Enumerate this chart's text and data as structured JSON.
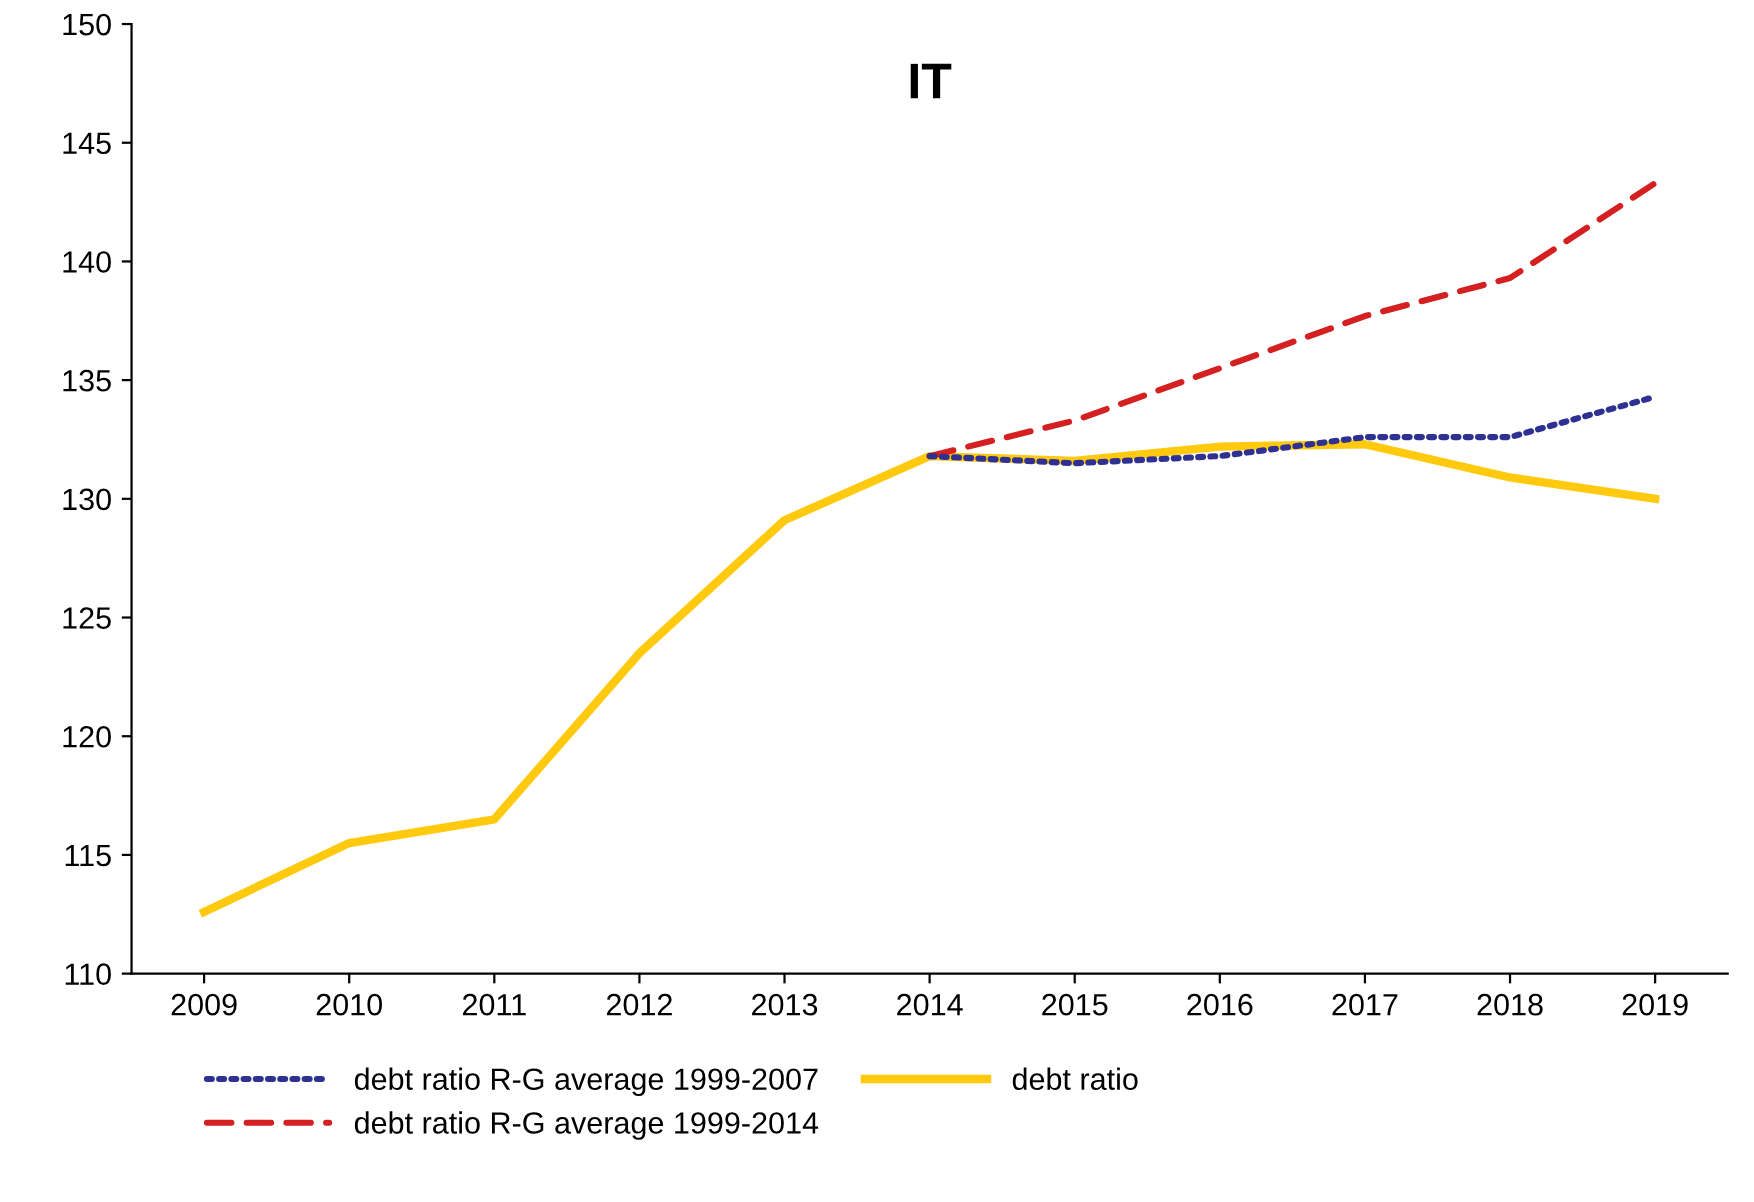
{
  "chart_data": {
    "type": "line",
    "title": "IT",
    "categories": [
      "2009",
      "2010",
      "2011",
      "2012",
      "2013",
      "2014",
      "2015",
      "2016",
      "2017",
      "2018",
      "2019"
    ],
    "series": [
      {
        "name": "debt ratio R-G average 1999-2007",
        "color": "#2e3192",
        "line_style": "dotted",
        "values": [
          null,
          null,
          null,
          null,
          null,
          131.8,
          131.5,
          131.8,
          132.6,
          132.6,
          134.3
        ]
      },
      {
        "name": "debt ratio R-G average 1999-2014",
        "color": "#d42020",
        "line_style": "dashed",
        "values": [
          null,
          null,
          null,
          null,
          null,
          131.8,
          133.3,
          135.5,
          137.7,
          139.3,
          143.3
        ]
      },
      {
        "name": "debt ratio",
        "color": "#ffc90e",
        "line_style": "solid",
        "values": [
          112.6,
          115.5,
          116.5,
          123.5,
          129.1,
          131.8,
          131.6,
          132.2,
          132.3,
          130.9,
          130.0
        ]
      }
    ],
    "ylim": [
      110,
      150
    ],
    "yticks": [
      110,
      115,
      120,
      125,
      130,
      135,
      140,
      145,
      150
    ],
    "grid": false,
    "legend": "bottom",
    "marker": "none"
  }
}
